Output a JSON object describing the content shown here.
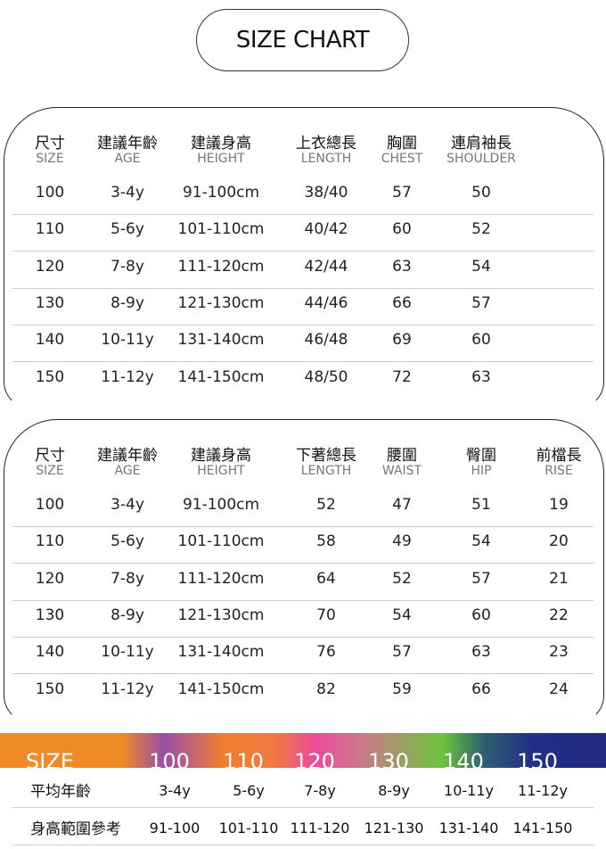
{
  "title": "SIZE CHART",
  "top_table": {
    "headers": [
      [
        "尺寸",
        "SIZE"
      ],
      [
        "建議年齡",
        "AGE"
      ],
      [
        "建議身高",
        "HEIGHT"
      ],
      [
        "上衣總長",
        "LENGTH"
      ],
      [
        "胸圍",
        "CHEST"
      ],
      [
        "連肩袖長",
        "SHOULDER"
      ]
    ],
    "rows": [
      [
        "100",
        "3-4y",
        "91-100cm",
        "38/40",
        "57",
        "50"
      ],
      [
        "110",
        "5-6y",
        "101-110cm",
        "40/42",
        "60",
        "52"
      ],
      [
        "120",
        "7-8y",
        "111-120cm",
        "42/44",
        "63",
        "54"
      ],
      [
        "130",
        "8-9y",
        "121-130cm",
        "44/46",
        "66",
        "57"
      ],
      [
        "140",
        "10-11y",
        "131-140cm",
        "46/48",
        "69",
        "60"
      ],
      [
        "150",
        "11-12y",
        "141-150cm",
        "48/50",
        "72",
        "63"
      ]
    ]
  },
  "bottom_table": {
    "headers": [
      [
        "尺寸",
        "SIZE"
      ],
      [
        "建議年齡",
        "AGE"
      ],
      [
        "建議身高",
        "HEIGHT"
      ],
      [
        "下著總長",
        "LENGTH"
      ],
      [
        "腰圍",
        "WAIST"
      ],
      [
        "臀圍",
        "HIP"
      ],
      [
        "前檔長",
        "RISE"
      ]
    ],
    "rows": [
      [
        "100",
        "3-4y",
        "91-100cm",
        "52",
        "47",
        "51",
        "19"
      ],
      [
        "110",
        "5-6y",
        "101-110cm",
        "58",
        "49",
        "54",
        "20"
      ],
      [
        "120",
        "7-8y",
        "111-120cm",
        "64",
        "52",
        "57",
        "21"
      ],
      [
        "130",
        "8-9y",
        "121-130cm",
        "70",
        "54",
        "60",
        "22"
      ],
      [
        "140",
        "10-11y",
        "131-140cm",
        "76",
        "57",
        "63",
        "23"
      ],
      [
        "150",
        "11-12y",
        "141-150cm",
        "82",
        "59",
        "66",
        "24"
      ]
    ]
  },
  "summary": {
    "band_label": "SIZE",
    "sizes": [
      "100",
      "110",
      "120",
      "130",
      "140",
      "150"
    ],
    "rows": [
      {
        "label": "平均年齡",
        "values": [
          "3-4y",
          "5-6y",
          "7-8y",
          "8-9y",
          "10-11y",
          "11-12y"
        ]
      },
      {
        "label": "身高範圍參考",
        "values": [
          "91-100",
          "101-110",
          "111-120",
          "121-130",
          "131-140",
          "141-150"
        ]
      }
    ]
  },
  "colors": {
    "band_start": "#f08a24",
    "band_end": "#232a80"
  }
}
